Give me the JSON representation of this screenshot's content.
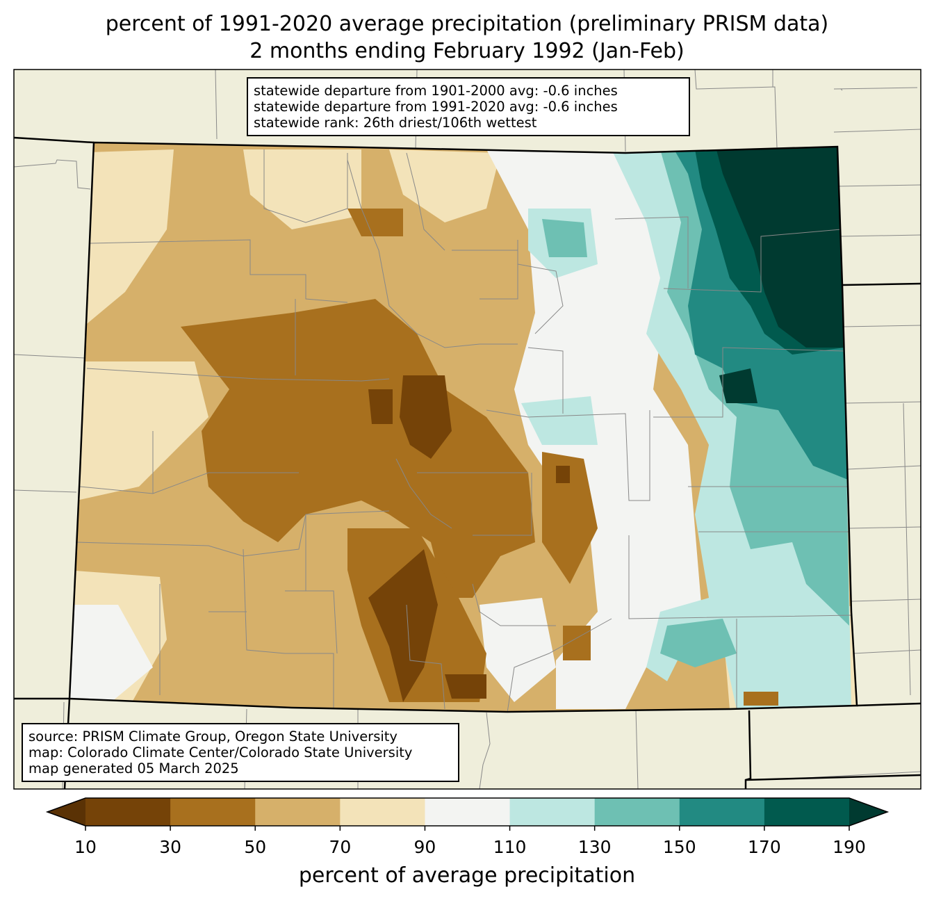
{
  "title": {
    "line1": "percent of 1991-2020 average precipitation (preliminary PRISM data)",
    "line2": "2 months ending February 1992 (Jan-Feb)"
  },
  "stats": {
    "line1": "statewide departure from 1901-2000 avg: -0.6 inches",
    "line2": "statewide departure from 1991-2020 avg: -0.6 inches",
    "line3": "statewide rank: 26th driest/106th wettest"
  },
  "source": {
    "line1": "source: PRISM Climate Group, Oregon State University",
    "line2": "map: Colorado Climate Center/Colorado State University",
    "line3": "map generated 05 March 2025"
  },
  "colorbar": {
    "label": "percent of average precipitation",
    "ticks": [
      "10",
      "30",
      "50",
      "70",
      "90",
      "110",
      "130",
      "150",
      "170",
      "190"
    ],
    "colors": [
      "#5a3205",
      "#754308",
      "#a8701e",
      "#d6b06a",
      "#f3e3b9",
      "#f3f4f2",
      "#bde7e1",
      "#6ec0b3",
      "#228a82",
      "#015a4e",
      "#003a30"
    ]
  },
  "colors": {
    "background_land": "#efeedb",
    "state_border": "#000000",
    "county_border": "#888888"
  }
}
